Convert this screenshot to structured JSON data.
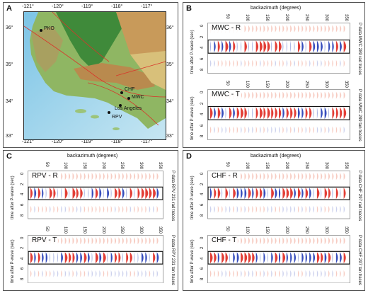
{
  "panels": {
    "A": {
      "label": "A",
      "lon_ticks": [
        "-121°",
        "-120°",
        "-119°",
        "-118°",
        "-117°"
      ],
      "lat_ticks": [
        "36°",
        "35°",
        "34°",
        "33°"
      ],
      "stations": {
        "pko": "PKO",
        "chf": "CHF",
        "mwc": "MWC",
        "los_angeles": "Los Angeles",
        "rpv": "RPV"
      }
    },
    "B": {
      "label": "B",
      "xlabel": "backazimuth (degrees)",
      "ylabel": "time after P-wave (sec)",
      "ticks": [
        "50",
        "100",
        "150",
        "200",
        "250",
        "300",
        "350"
      ],
      "yticks": [
        "0",
        "2",
        "4",
        "6",
        "8"
      ],
      "r": {
        "name": "MWC - R",
        "side": "P data MWC 289 rad traces"
      },
      "t": {
        "name": "MWC - T",
        "side": "P data MWC 289 tan traces"
      }
    },
    "C": {
      "label": "C",
      "xlabel": "backazimuth (degrees)",
      "ylabel": "time after P-wave (sec)",
      "ticks": [
        "50",
        "100",
        "150",
        "200",
        "250",
        "300",
        "350"
      ],
      "yticks": [
        "0",
        "2",
        "4",
        "6",
        "8"
      ],
      "r": {
        "name": "RPV - R",
        "side": "P data RPV 231 rad traces"
      },
      "t": {
        "name": "RPV - T",
        "side": "P data RPV 231 tan traces"
      }
    },
    "D": {
      "label": "D",
      "xlabel": "backazimuth (degrees)",
      "ylabel": "time after P-wave (sec)",
      "ticks": [
        "50",
        "100",
        "150",
        "200",
        "250",
        "300",
        "350"
      ],
      "yticks": [
        "0",
        "2",
        "4",
        "6",
        "8"
      ],
      "r": {
        "name": "CHF - R",
        "side": "P data CHF 297 rad traces"
      },
      "t": {
        "name": "CHF - T",
        "side": "P data CHF 297 tan traces"
      }
    }
  },
  "colors": {
    "positive": "#e0342b",
    "negative": "#2b43b8",
    "map_sea": "#9ecfe8",
    "map_land": "#7fae5a"
  }
}
